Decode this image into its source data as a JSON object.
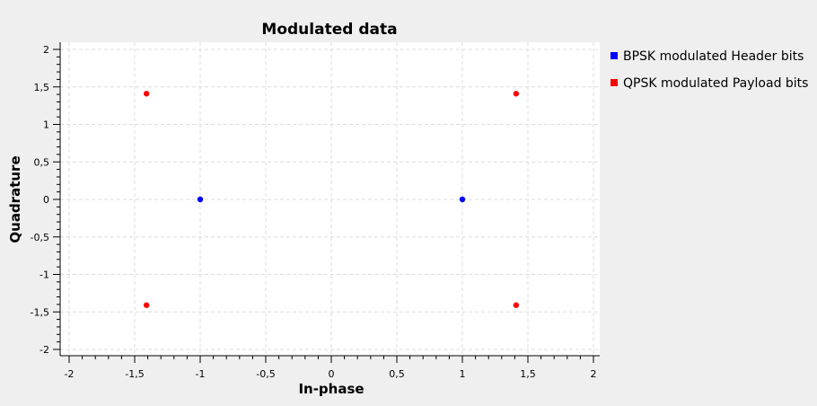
{
  "chart_data": {
    "type": "scatter",
    "title": "Modulated data",
    "xlabel": "In-phase",
    "ylabel": "Quadrature",
    "xlim": [
      -2,
      2
    ],
    "ylim": [
      -2,
      2
    ],
    "xticks": [
      "-2",
      "-1,5",
      "-1",
      "-0,5",
      "0",
      "0,5",
      "1",
      "1,5",
      "2"
    ],
    "yticks": [
      "-2",
      "-1,5",
      "-1",
      "-0,5",
      "0",
      "0,5",
      "1",
      "1,5",
      "2"
    ],
    "grid": true,
    "legend_position": "right",
    "series": [
      {
        "name": "BPSK modulated Header bits",
        "color": "#0000ff",
        "points": [
          [
            -1,
            0
          ],
          [
            1,
            0
          ]
        ]
      },
      {
        "name": "QPSK modulated Payload bits",
        "color": "#ff0000",
        "points": [
          [
            -1.41,
            1.41
          ],
          [
            1.41,
            1.41
          ],
          [
            -1.41,
            -1.41
          ],
          [
            1.41,
            -1.41
          ]
        ]
      }
    ]
  }
}
